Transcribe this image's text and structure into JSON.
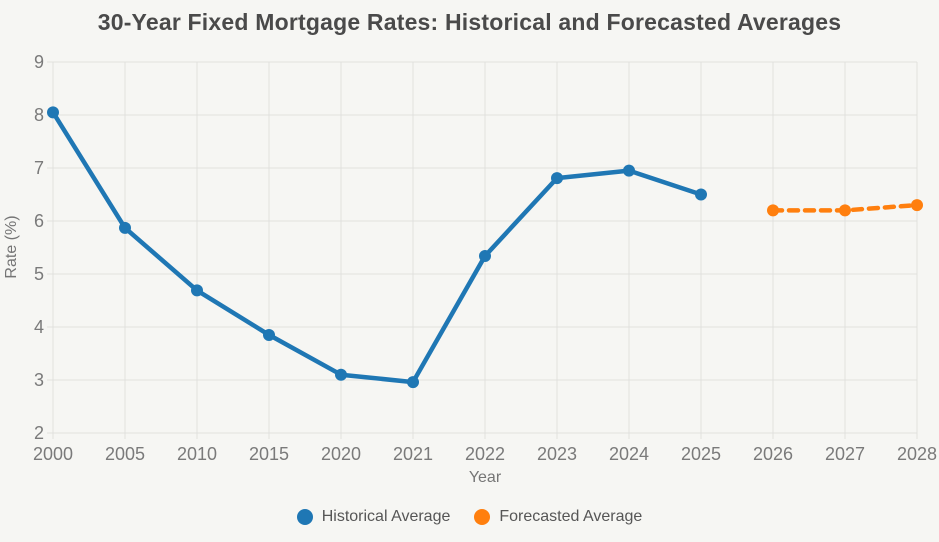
{
  "chart_data": {
    "type": "line",
    "title": "30-Year Fixed Mortgage Rates: Historical and Forecasted Averages",
    "xlabel": "Year",
    "ylabel": "Rate (%)",
    "categories": [
      "2000",
      "2005",
      "2010",
      "2015",
      "2020",
      "2021",
      "2022",
      "2023",
      "2024",
      "2025",
      "2026",
      "2027",
      "2028"
    ],
    "yticks": [
      2,
      3,
      4,
      5,
      6,
      7,
      8,
      9
    ],
    "ylim": [
      2,
      9
    ],
    "grid": true,
    "legend_position": "bottom",
    "series": [
      {
        "name": "Historical Average",
        "color": "#1f77b4",
        "dashed": false,
        "values": [
          8.05,
          5.87,
          4.69,
          3.85,
          3.1,
          2.96,
          5.34,
          6.81,
          6.95,
          6.5,
          null,
          null,
          null
        ]
      },
      {
        "name": "Forecasted Average",
        "color": "#ff7f0e",
        "dashed": true,
        "values": [
          null,
          null,
          null,
          null,
          null,
          null,
          null,
          null,
          null,
          null,
          6.2,
          6.2,
          6.3
        ]
      }
    ]
  },
  "colors": {
    "background": "#f6f6f3",
    "gridline": "#e1e1de",
    "title_text": "#4a4a4a",
    "tick_text": "#7a7a7a"
  }
}
